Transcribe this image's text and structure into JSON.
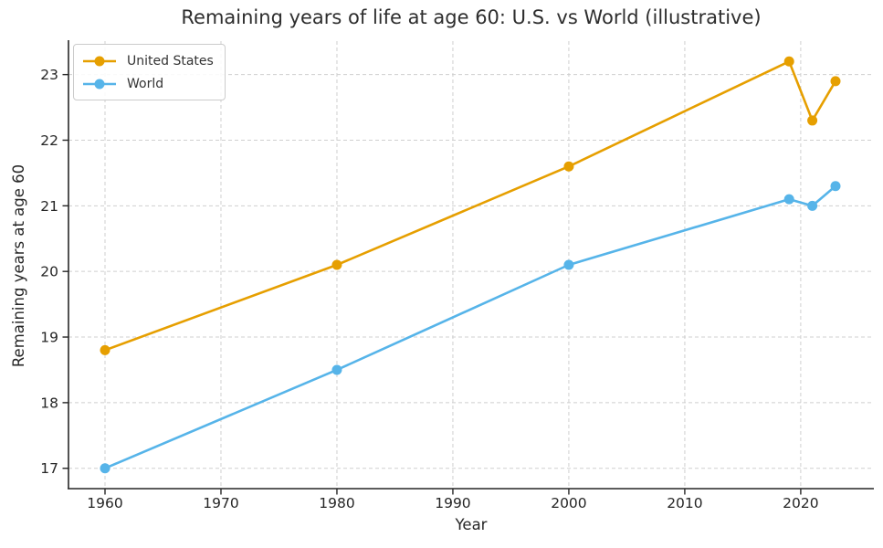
{
  "chart_data": {
    "type": "line",
    "title": "Remaining years of life at age 60: U.S. vs World (illustrative)",
    "xlabel": "Year",
    "ylabel": "Remaining years at age 60",
    "x": [
      1960,
      1980,
      2000,
      2019,
      2021,
      2023
    ],
    "series": [
      {
        "name": "United States",
        "color": "#E69F00",
        "values": [
          18.8,
          20.1,
          21.6,
          23.2,
          22.3,
          22.9
        ]
      },
      {
        "name": "World",
        "color": "#56B4E9",
        "values": [
          17.0,
          18.5,
          20.1,
          21.1,
          21.0,
          21.3
        ]
      }
    ],
    "xticks": [
      1960,
      1970,
      1980,
      1990,
      2000,
      2010,
      2020
    ],
    "yticks": [
      17,
      18,
      19,
      20,
      21,
      22,
      23
    ],
    "xlim": [
      1956.85,
      2026.15
    ],
    "ylim": [
      16.69,
      23.51
    ],
    "grid": "dashed",
    "legend_position": "upper-left",
    "axis_color": "#262626",
    "grid_color": "#cfcfcf",
    "tick_label_color": "#262626"
  }
}
